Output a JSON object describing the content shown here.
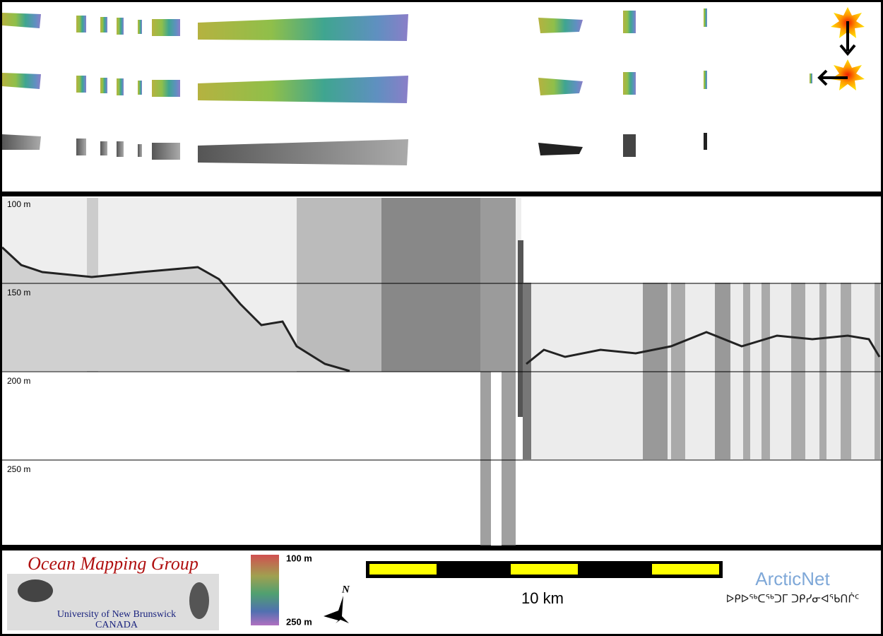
{
  "depth_labels": [
    "100 m",
    "150 m",
    "200 m",
    "250 m"
  ],
  "footer": {
    "group_name": "Ocean Mapping Group",
    "university": "University of New Brunswick",
    "country": "CANADA",
    "colorbar_top": "100 m",
    "colorbar_bottom": "250 m",
    "north": "N",
    "scale_label": "10 km",
    "partner": "ArcticNet",
    "partner_inuktitut": "ᐅᑭᐅᖅᑕᖅᑐᒥ ᑐᑭᓯᓂᐊᖃᑎᒌᑦ"
  }
}
